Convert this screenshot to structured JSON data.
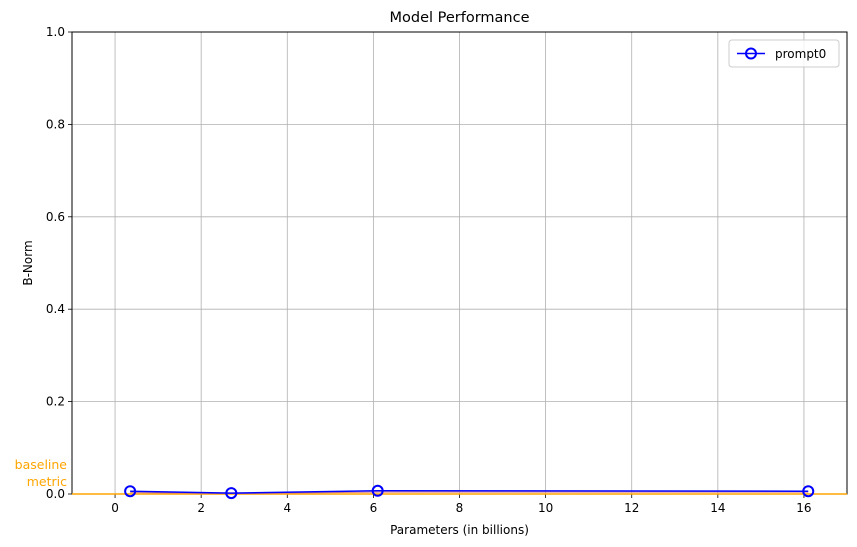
{
  "chart_data": {
    "type": "line",
    "title": "Model Performance",
    "xlabel": "Parameters (in billions)",
    "ylabel": "B-Norm",
    "xlim": [
      -1,
      17
    ],
    "ylim": [
      0,
      1
    ],
    "xticks": [
      "0",
      "2",
      "4",
      "6",
      "8",
      "10",
      "12",
      "14",
      "16"
    ],
    "yticks": [
      "0.0",
      "0.2",
      "0.4",
      "0.6",
      "0.8",
      "1.0"
    ],
    "grid": true,
    "legend": {
      "placement": "top-right",
      "entries": [
        "prompt0"
      ]
    },
    "series": [
      {
        "name": "prompt0",
        "color": "#0000ff",
        "marker": "circle-open",
        "x": [
          0.35,
          2.7,
          6.1,
          16.1
        ],
        "y": [
          0.006,
          0.002,
          0.007,
          0.006
        ]
      }
    ],
    "baseline": {
      "label_line1": "baseline",
      "label_line2": "metric",
      "value": 0.0,
      "color": "#ffa500"
    },
    "secondary_line": {
      "color": "#d98080",
      "x": [
        0.35,
        2.7,
        6.1,
        16.1
      ],
      "y": [
        0.003,
        0.001,
        0.004,
        0.004
      ]
    }
  }
}
